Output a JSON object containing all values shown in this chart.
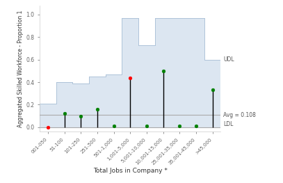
{
  "categories": [
    "001-050",
    "51-100",
    "101-250",
    "251-500",
    "501-1,000",
    "1,001-5,000",
    "5,001-10,000",
    "10,001-15,000",
    "25,001-35,000",
    "35,001-45,000",
    ">45,000"
  ],
  "udl_values": [
    0.21,
    0.4,
    0.39,
    0.45,
    0.47,
    0.97,
    0.73,
    0.97,
    0.97,
    0.97,
    0.6
  ],
  "ldl_values": [
    0.0,
    0.0,
    0.0,
    0.0,
    0.0,
    0.0,
    0.0,
    0.0,
    0.0,
    0.0,
    0.0
  ],
  "mean_values": [
    0.0,
    0.12,
    0.1,
    0.16,
    0.01,
    0.44,
    0.01,
    0.5,
    0.01,
    0.01,
    0.33
  ],
  "mean_colors": [
    "red",
    "green",
    "green",
    "green",
    "green",
    "red",
    "green",
    "green",
    "green",
    "green",
    "green"
  ],
  "avg_line": 0.108,
  "ldl_line": 0.0,
  "ylabel": "Aggregated Skilled Workforce - Proportion 1",
  "xlabel": "Total Jobs in Company *",
  "udl_label": "UDL",
  "avg_label": "Avg = 0.108",
  "ldl_label": "LDL",
  "bg_color": "#dce6f1",
  "border_color": "#aec3d9",
  "avg_line_color": "#aaaaaa",
  "ldl_line_color": "#aaaaaa",
  "yticks": [
    0.0,
    0.2,
    0.4,
    0.6,
    0.8,
    1.0
  ],
  "ylim": [
    -0.04,
    1.08
  ],
  "figsize": [
    4.07,
    2.63
  ],
  "dpi": 100
}
